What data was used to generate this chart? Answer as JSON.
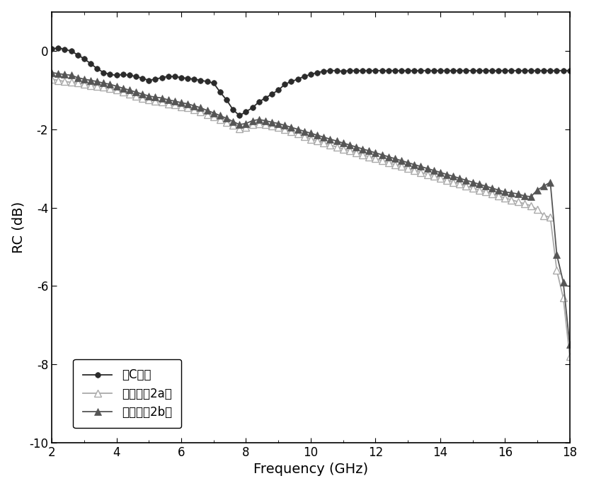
{
  "series1_name": "无C纤维",
  "series2_name": "蜂窝（图2a）",
  "series3_name": "蜂窝（图2b）",
  "series1_x": [
    2.0,
    2.2,
    2.4,
    2.6,
    2.8,
    3.0,
    3.2,
    3.4,
    3.6,
    3.8,
    4.0,
    4.2,
    4.4,
    4.6,
    4.8,
    5.0,
    5.2,
    5.4,
    5.6,
    5.8,
    6.0,
    6.2,
    6.4,
    6.6,
    6.8,
    7.0,
    7.2,
    7.4,
    7.6,
    7.8,
    8.0,
    8.2,
    8.4,
    8.6,
    8.8,
    9.0,
    9.2,
    9.4,
    9.6,
    9.8,
    10.0,
    10.2,
    10.4,
    10.6,
    10.8,
    11.0,
    11.2,
    11.4,
    11.6,
    11.8,
    12.0,
    12.2,
    12.4,
    12.6,
    12.8,
    13.0,
    13.2,
    13.4,
    13.6,
    13.8,
    14.0,
    14.2,
    14.4,
    14.6,
    14.8,
    15.0,
    15.2,
    15.4,
    15.6,
    15.8,
    16.0,
    16.2,
    16.4,
    16.6,
    16.8,
    17.0,
    17.2,
    17.4,
    17.6,
    17.8,
    18.0
  ],
  "series1_y": [
    0.05,
    0.08,
    0.04,
    0.0,
    -0.1,
    -0.2,
    -0.32,
    -0.45,
    -0.55,
    -0.6,
    -0.62,
    -0.6,
    -0.62,
    -0.65,
    -0.7,
    -0.75,
    -0.72,
    -0.68,
    -0.65,
    -0.65,
    -0.68,
    -0.7,
    -0.72,
    -0.75,
    -0.78,
    -0.82,
    -1.05,
    -1.25,
    -1.5,
    -1.65,
    -1.55,
    -1.45,
    -1.3,
    -1.2,
    -1.1,
    -1.0,
    -0.85,
    -0.78,
    -0.72,
    -0.65,
    -0.6,
    -0.55,
    -0.52,
    -0.5,
    -0.5,
    -0.52,
    -0.5,
    -0.5,
    -0.5,
    -0.5,
    -0.5,
    -0.5,
    -0.5,
    -0.5,
    -0.5,
    -0.5,
    -0.5,
    -0.5,
    -0.5,
    -0.5,
    -0.5,
    -0.5,
    -0.5,
    -0.5,
    -0.5,
    -0.5,
    -0.5,
    -0.5,
    -0.5,
    -0.5,
    -0.5,
    -0.5,
    -0.5,
    -0.5,
    -0.5,
    -0.5,
    -0.5,
    -0.5,
    -0.5,
    -0.5,
    -0.5
  ],
  "series2_x": [
    2.0,
    2.2,
    2.4,
    2.6,
    2.8,
    3.0,
    3.2,
    3.4,
    3.6,
    3.8,
    4.0,
    4.2,
    4.4,
    4.6,
    4.8,
    5.0,
    5.2,
    5.4,
    5.6,
    5.8,
    6.0,
    6.2,
    6.4,
    6.6,
    6.8,
    7.0,
    7.2,
    7.4,
    7.6,
    7.8,
    8.0,
    8.2,
    8.4,
    8.6,
    8.8,
    9.0,
    9.2,
    9.4,
    9.6,
    9.8,
    10.0,
    10.2,
    10.4,
    10.6,
    10.8,
    11.0,
    11.2,
    11.4,
    11.6,
    11.8,
    12.0,
    12.2,
    12.4,
    12.6,
    12.8,
    13.0,
    13.2,
    13.4,
    13.6,
    13.8,
    14.0,
    14.2,
    14.4,
    14.6,
    14.8,
    15.0,
    15.2,
    15.4,
    15.6,
    15.8,
    16.0,
    16.2,
    16.4,
    16.6,
    16.8,
    17.0,
    17.2,
    17.4,
    17.6,
    17.8,
    18.0
  ],
  "series2_y": [
    -0.72,
    -0.75,
    -0.78,
    -0.8,
    -0.82,
    -0.85,
    -0.88,
    -0.9,
    -0.92,
    -0.95,
    -1.0,
    -1.05,
    -1.1,
    -1.15,
    -1.2,
    -1.25,
    -1.28,
    -1.3,
    -1.35,
    -1.38,
    -1.42,
    -1.45,
    -1.5,
    -1.55,
    -1.62,
    -1.68,
    -1.75,
    -1.82,
    -1.9,
    -1.98,
    -1.95,
    -1.88,
    -1.85,
    -1.88,
    -1.92,
    -1.95,
    -2.0,
    -2.05,
    -2.12,
    -2.18,
    -2.25,
    -2.3,
    -2.35,
    -2.4,
    -2.45,
    -2.5,
    -2.55,
    -2.6,
    -2.65,
    -2.7,
    -2.75,
    -2.8,
    -2.85,
    -2.9,
    -2.95,
    -3.0,
    -3.05,
    -3.1,
    -3.15,
    -3.2,
    -3.25,
    -3.3,
    -3.35,
    -3.4,
    -3.45,
    -3.5,
    -3.55,
    -3.6,
    -3.65,
    -3.7,
    -3.75,
    -3.8,
    -3.85,
    -3.9,
    -3.95,
    -4.05,
    -4.2,
    -4.25,
    -5.6,
    -6.3,
    -7.8
  ],
  "series3_x": [
    2.0,
    2.2,
    2.4,
    2.6,
    2.8,
    3.0,
    3.2,
    3.4,
    3.6,
    3.8,
    4.0,
    4.2,
    4.4,
    4.6,
    4.8,
    5.0,
    5.2,
    5.4,
    5.6,
    5.8,
    6.0,
    6.2,
    6.4,
    6.6,
    6.8,
    7.0,
    7.2,
    7.4,
    7.6,
    7.8,
    8.0,
    8.2,
    8.4,
    8.6,
    8.8,
    9.0,
    9.2,
    9.4,
    9.6,
    9.8,
    10.0,
    10.2,
    10.4,
    10.6,
    10.8,
    11.0,
    11.2,
    11.4,
    11.6,
    11.8,
    12.0,
    12.2,
    12.4,
    12.6,
    12.8,
    13.0,
    13.2,
    13.4,
    13.6,
    13.8,
    14.0,
    14.2,
    14.4,
    14.6,
    14.8,
    15.0,
    15.2,
    15.4,
    15.6,
    15.8,
    16.0,
    16.2,
    16.4,
    16.6,
    16.8,
    17.0,
    17.2,
    17.4,
    17.6,
    17.8,
    18.0
  ],
  "series3_y": [
    -0.55,
    -0.58,
    -0.6,
    -0.62,
    -0.68,
    -0.72,
    -0.75,
    -0.78,
    -0.82,
    -0.85,
    -0.9,
    -0.95,
    -1.0,
    -1.05,
    -1.1,
    -1.15,
    -1.18,
    -1.2,
    -1.25,
    -1.28,
    -1.32,
    -1.35,
    -1.4,
    -1.45,
    -1.52,
    -1.58,
    -1.65,
    -1.72,
    -1.8,
    -1.88,
    -1.85,
    -1.78,
    -1.75,
    -1.78,
    -1.82,
    -1.85,
    -1.9,
    -1.95,
    -2.0,
    -2.05,
    -2.1,
    -2.15,
    -2.2,
    -2.25,
    -2.3,
    -2.35,
    -2.4,
    -2.45,
    -2.5,
    -2.55,
    -2.6,
    -2.65,
    -2.7,
    -2.75,
    -2.8,
    -2.85,
    -2.9,
    -2.95,
    -3.0,
    -3.05,
    -3.1,
    -3.15,
    -3.2,
    -3.25,
    -3.3,
    -3.35,
    -3.4,
    -3.45,
    -3.5,
    -3.55,
    -3.6,
    -3.62,
    -3.65,
    -3.7,
    -3.72,
    -3.55,
    -3.45,
    -3.35,
    -5.2,
    -5.9,
    -7.5
  ],
  "xlabel": "Frequency (GHz)",
  "ylabel": "RC (dB)",
  "xlim": [
    2,
    18
  ],
  "ylim": [
    -10,
    1
  ],
  "xticks": [
    2,
    4,
    6,
    8,
    10,
    12,
    14,
    16,
    18
  ],
  "yticks": [
    0,
    -2,
    -4,
    -6,
    -8,
    -10
  ],
  "color1": "#2b2b2b",
  "color2": "#aaaaaa",
  "color3": "#555555",
  "bg_color": "#ffffff"
}
